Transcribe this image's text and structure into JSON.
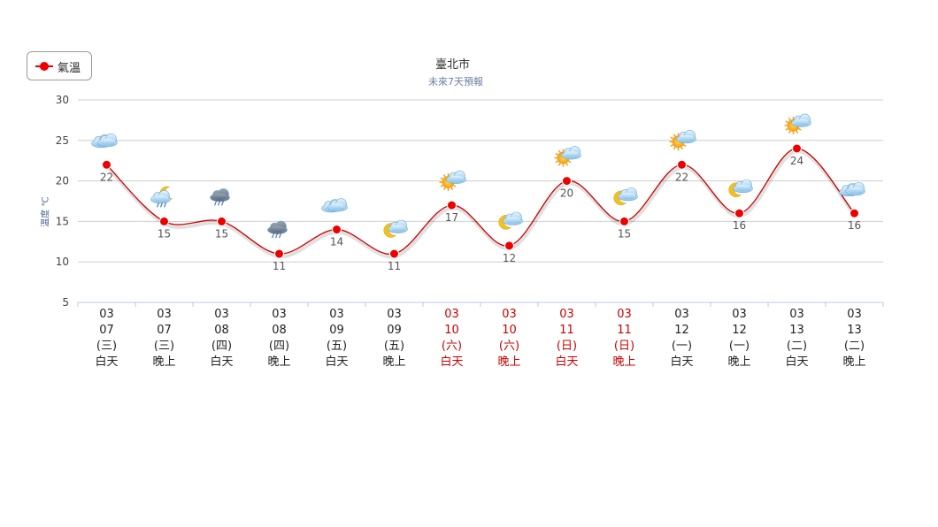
{
  "legend": {
    "series_label": "氣溫"
  },
  "chart_data": {
    "type": "line",
    "title": "臺北市",
    "subtitle": "未來7天預報",
    "ylabel": "溫度 ℃",
    "ylim": [
      5,
      30
    ],
    "yticks": [
      5,
      10,
      15,
      20,
      25,
      30
    ],
    "grid": true,
    "legend_position": "top-left",
    "colors": {
      "line": "#cc0000",
      "marker": "#ee0000",
      "weekday_text": "#222222",
      "weekend_text": "#cc0000"
    },
    "categories": [
      {
        "month": "03",
        "day": "07",
        "weekday": "(三)",
        "period": "白天",
        "weekend": false,
        "icon": "cloudy-icon"
      },
      {
        "month": "03",
        "day": "07",
        "weekday": "(三)",
        "period": "晚上",
        "weekend": false,
        "icon": "night-rain-icon"
      },
      {
        "month": "03",
        "day": "08",
        "weekday": "(四)",
        "period": "白天",
        "weekend": false,
        "icon": "rain-icon"
      },
      {
        "month": "03",
        "day": "08",
        "weekday": "(四)",
        "period": "晚上",
        "weekend": false,
        "icon": "rain-icon"
      },
      {
        "month": "03",
        "day": "09",
        "weekday": "(五)",
        "period": "白天",
        "weekend": false,
        "icon": "cloudy-icon"
      },
      {
        "month": "03",
        "day": "09",
        "weekday": "(五)",
        "period": "晚上",
        "weekend": false,
        "icon": "moon-cloud-icon"
      },
      {
        "month": "03",
        "day": "10",
        "weekday": "(六)",
        "period": "白天",
        "weekend": true,
        "icon": "sun-cloud-icon"
      },
      {
        "month": "03",
        "day": "10",
        "weekday": "(六)",
        "period": "晚上",
        "weekend": true,
        "icon": "moon-cloud-icon"
      },
      {
        "month": "03",
        "day": "11",
        "weekday": "(日)",
        "period": "白天",
        "weekend": true,
        "icon": "sun-cloud-icon"
      },
      {
        "month": "03",
        "day": "11",
        "weekday": "(日)",
        "period": "晚上",
        "weekend": true,
        "icon": "moon-cloud-icon"
      },
      {
        "month": "03",
        "day": "12",
        "weekday": "(一)",
        "period": "白天",
        "weekend": false,
        "icon": "sun-cloud-icon"
      },
      {
        "month": "03",
        "day": "12",
        "weekday": "(一)",
        "period": "晚上",
        "weekend": false,
        "icon": "moon-cloud-icon"
      },
      {
        "month": "03",
        "day": "13",
        "weekday": "(二)",
        "period": "白天",
        "weekend": false,
        "icon": "sun-cloud-icon"
      },
      {
        "month": "03",
        "day": "13",
        "weekday": "(二)",
        "period": "晚上",
        "weekend": false,
        "icon": "cloudy-icon"
      }
    ],
    "series": [
      {
        "name": "氣溫",
        "values": [
          22,
          15,
          15,
          11,
          14,
          11,
          17,
          12,
          20,
          15,
          22,
          16,
          24,
          16
        ]
      }
    ]
  }
}
